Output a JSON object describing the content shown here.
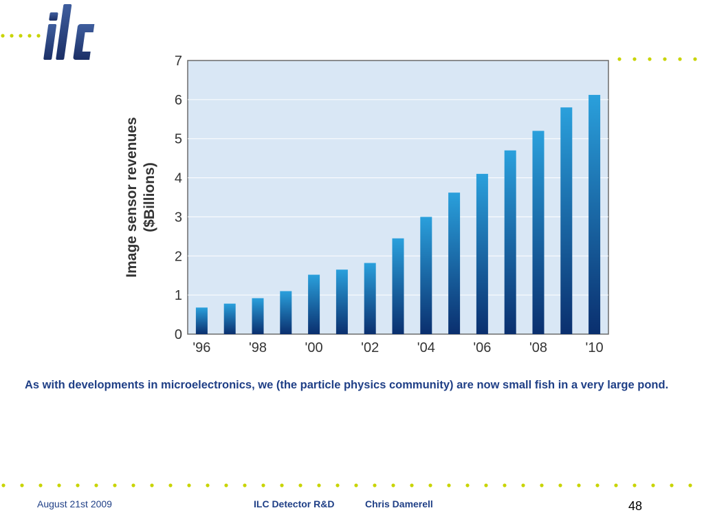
{
  "logo": {
    "text": "ilc"
  },
  "caption": "As with developments in microelectronics, we (the particle physics community) are now small fish in a very large pond.",
  "footer": {
    "date": "August 21st  2009",
    "title": "ILC Detector R&D",
    "author": "Chris Damerell",
    "page": "48"
  },
  "colors": {
    "accent": "#1f3f86",
    "dots": "#c8d400",
    "plot_bg": "#d9e7f5",
    "bar_top": "#2aa0dc",
    "bar_bottom": "#0a2f6e"
  },
  "chart_data": {
    "type": "bar",
    "title": "",
    "xlabel": "",
    "ylabel": "Image sensor revenues",
    "ylabel_unit": "($Billions)",
    "ylim": [
      0,
      7
    ],
    "yticks": [
      "0",
      "1",
      "2",
      "3",
      "4",
      "5",
      "6",
      "7"
    ],
    "categories": [
      "1996",
      "1997",
      "1998",
      "1999",
      "2000",
      "2001",
      "2002",
      "2003",
      "2004",
      "2005",
      "2006",
      "2007",
      "2008",
      "2009",
      "2010"
    ],
    "xtick_labels": [
      "'96",
      "",
      "'98",
      "",
      "'00",
      "",
      "'02",
      "",
      "'04",
      "",
      "'06",
      "",
      "'08",
      "",
      "'10"
    ],
    "values": [
      0.68,
      0.78,
      0.92,
      1.1,
      1.52,
      1.65,
      1.82,
      2.45,
      3.0,
      3.62,
      4.1,
      4.7,
      5.2,
      5.8,
      6.12
    ],
    "grid": true,
    "legend": "none"
  }
}
